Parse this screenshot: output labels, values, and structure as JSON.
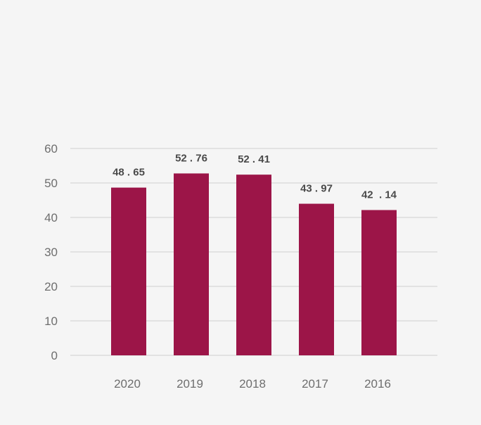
{
  "chart_data": {
    "type": "bar",
    "categories": [
      "2020",
      "2019",
      "2018",
      "2017",
      "2016"
    ],
    "values": [
      48.65,
      52.76,
      52.41,
      43.97,
      42.14
    ],
    "data_labels": [
      "48 . 65",
      "52 . 76",
      "52 . 41",
      "43 . 97",
      "42  . 14"
    ],
    "yticks": [
      0,
      10,
      20,
      30,
      40,
      50,
      60
    ],
    "ylim": [
      0,
      60
    ],
    "title": "",
    "xlabel": "",
    "ylabel": "",
    "grid": true,
    "colors": {
      "bar": "#9c1548",
      "grid": "#cfcfcf",
      "tick_text": "#6e6e6e",
      "label_text": "#4a4a4a",
      "background": "#f5f5f5"
    }
  }
}
